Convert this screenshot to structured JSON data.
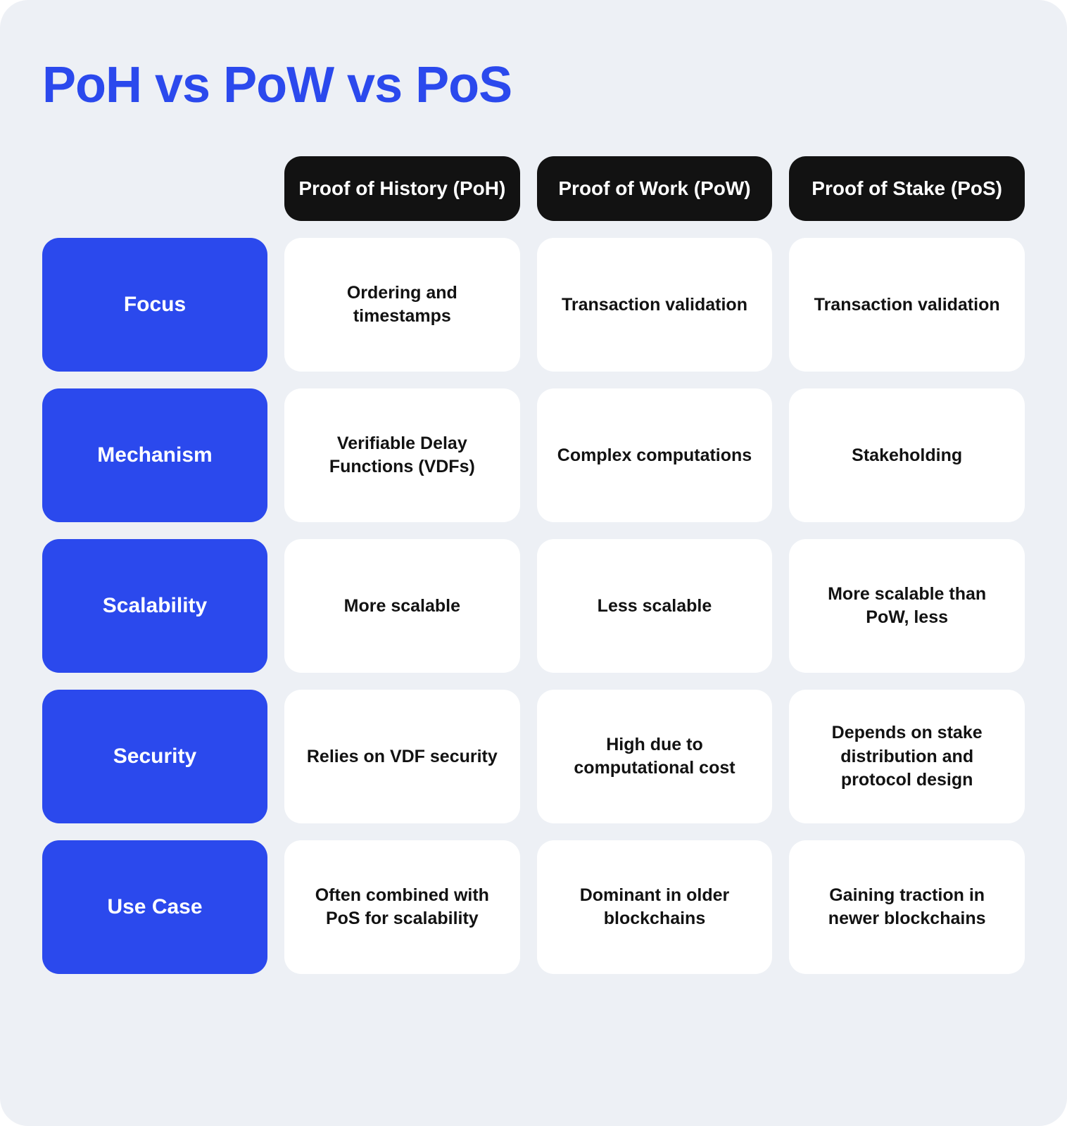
{
  "title": "PoH vs PoW vs PoS",
  "columns": [
    "Proof of History (PoH)",
    "Proof of Work (PoW)",
    "Proof of Stake (PoS)"
  ],
  "rows": [
    {
      "label": "Focus",
      "cells": [
        "Ordering and timestamps",
        "Transaction validation",
        "Transaction validation"
      ]
    },
    {
      "label": "Mechanism",
      "cells": [
        "Verifiable Delay Functions (VDFs)",
        "Complex computations",
        "Stakeholding"
      ]
    },
    {
      "label": "Scalability",
      "cells": [
        "More scalable",
        "Less scalable",
        "More scalable than PoW, less"
      ]
    },
    {
      "label": "Security",
      "cells": [
        "Relies on VDF security",
        "High due to computational cost",
        "Depends on stake distribution and protocol design"
      ]
    },
    {
      "label": "Use Case",
      "cells": [
        "Often combined with PoS for scalability",
        "Dominant in older blockchains",
        "Gaining traction in newer blockchains"
      ]
    }
  ],
  "style": {
    "background_color": "#edf0f5",
    "title_color": "#2b49ed",
    "title_fontsize": 72,
    "title_fontweight": 800,
    "col_header_bg": "#121212",
    "col_header_fg": "#ffffff",
    "col_header_fontsize": 28,
    "row_label_bg": "#2b49ed",
    "row_label_fg": "#ffffff",
    "row_label_fontsize": 30,
    "cell_bg": "#ffffff",
    "cell_fg": "#121212",
    "cell_fontsize": 25,
    "border_radius": 24,
    "container_radius": 40,
    "gap": 24,
    "row_min_height": 190
  }
}
